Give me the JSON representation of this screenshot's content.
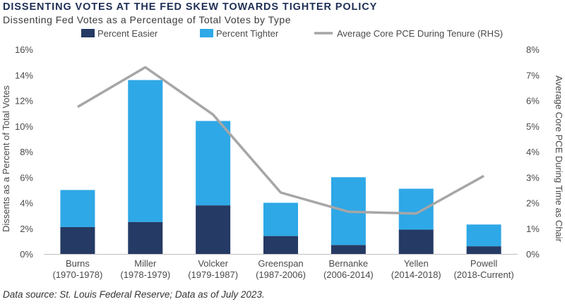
{
  "title": "DISSENTING VOTES AT THE FED SKEW TOWARDS TIGHTER POLICY",
  "subtitle": "Dissenting Fed Votes as a Percentage of Total Votes by Type",
  "source": "Data source: St. Louis Federal Reserve; Data as of July 2023.",
  "colors": {
    "easier": "#253a64",
    "tighter": "#2ea8e6",
    "pce": "#a6a6a6"
  },
  "chart_data": {
    "type": "bar",
    "stacked": true,
    "categories": [
      [
        "Burns",
        "(1970-1978)"
      ],
      [
        "Miller",
        "(1978-1979)"
      ],
      [
        "Volcker",
        "(1979-1987)"
      ],
      [
        "Greenspan",
        "(1987-2006)"
      ],
      [
        "Bernanke",
        "(2006-2014)"
      ],
      [
        "Yellen",
        "(2014-2018)"
      ],
      [
        "Powell",
        "(2018-Current)"
      ]
    ],
    "series": [
      {
        "name": "Percent Easier",
        "type": "bar",
        "axis": "left",
        "values": [
          2.1,
          2.5,
          3.8,
          1.4,
          0.7,
          1.9,
          0.6
        ]
      },
      {
        "name": "Percent Tighter",
        "type": "bar",
        "axis": "left",
        "values": [
          2.9,
          11.1,
          6.6,
          2.6,
          5.3,
          3.2,
          1.7
        ]
      },
      {
        "name": "Average Core PCE During Tenure (RHS)",
        "type": "line",
        "axis": "right",
        "values": [
          5.75,
          7.3,
          5.45,
          2.4,
          1.65,
          1.58,
          3.05
        ]
      }
    ],
    "ylabel": "Dissents as a Percent of Total Votes",
    "ylabel_right": "Average Core PCE During Time as Chair",
    "ylim": [
      0,
      16
    ],
    "ylim_right": [
      0,
      8
    ],
    "yticks": [
      "0%",
      "2%",
      "4%",
      "6%",
      "8%",
      "10%",
      "12%",
      "14%",
      "16%"
    ],
    "yticks_right": [
      "0%",
      "1%",
      "2%",
      "3%",
      "4%",
      "5%",
      "6%",
      "7%",
      "8%"
    ],
    "legend_position": "top",
    "grid": false
  }
}
